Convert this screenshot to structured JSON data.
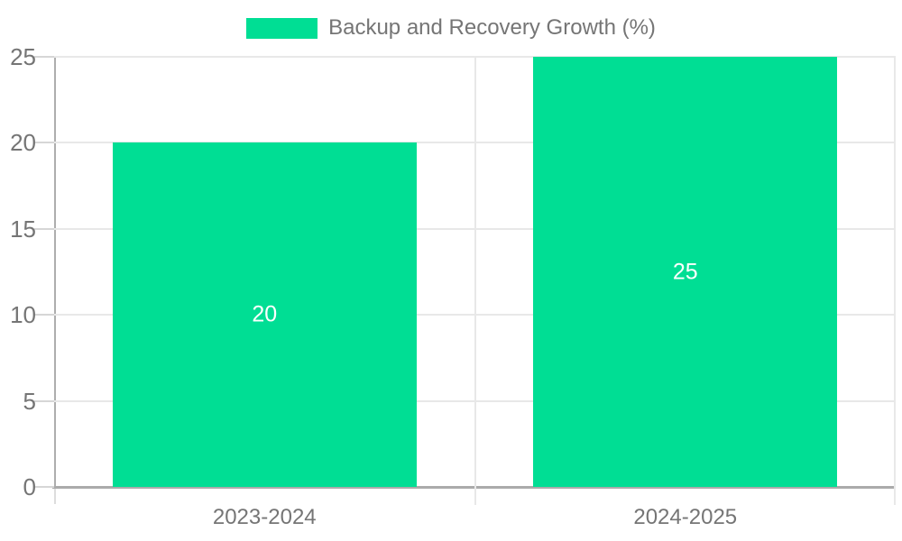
{
  "chart_data": {
    "type": "bar",
    "title": "Backup and Recovery Growth (%)",
    "legend": {
      "entries": [
        "Backup and Recovery Growth (%)"
      ],
      "position": "top-center"
    },
    "categories": [
      "2023-2024",
      "2024-2025"
    ],
    "series": [
      {
        "name": "Backup and Recovery Growth (%)",
        "values": [
          20,
          25
        ]
      }
    ],
    "values": [
      20,
      25
    ],
    "bar_value_labels": [
      "20",
      "25"
    ],
    "xlabel": "",
    "ylabel": "",
    "ylim": [
      0,
      25
    ],
    "yticks": [
      0,
      5,
      10,
      15,
      20,
      25
    ],
    "grid": true,
    "colors": {
      "bar": "#00DE94",
      "axis_text": "#757575",
      "bar_value_label": "#ffffff",
      "gridline": "#e8e8e8",
      "axis_line": "#aeaeae"
    }
  }
}
